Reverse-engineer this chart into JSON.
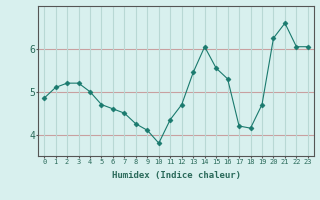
{
  "xlabel": "Humidex (Indice chaleur)",
  "x": [
    0,
    1,
    2,
    3,
    4,
    5,
    6,
    7,
    8,
    9,
    10,
    11,
    12,
    13,
    14,
    15,
    16,
    17,
    18,
    19,
    20,
    21,
    22,
    23
  ],
  "y": [
    4.85,
    5.1,
    5.2,
    5.2,
    5.0,
    4.7,
    4.6,
    4.5,
    4.25,
    4.1,
    3.8,
    4.35,
    4.7,
    5.45,
    6.05,
    5.55,
    5.3,
    4.2,
    4.15,
    4.7,
    6.25,
    6.6,
    6.05,
    6.05
  ],
  "line_color": "#1a7a6e",
  "marker": "D",
  "marker_size": 2.5,
  "bg_color": "#d8f0ee",
  "hgrid_color": "#c8a0a0",
  "vgrid_color": "#b8d8d4",
  "axis_color": "#555555",
  "tick_label_color": "#2a6a5a",
  "ylim": [
    3.5,
    7.0
  ],
  "yticks": [
    4,
    5,
    6
  ],
  "xlim": [
    -0.5,
    23.5
  ]
}
